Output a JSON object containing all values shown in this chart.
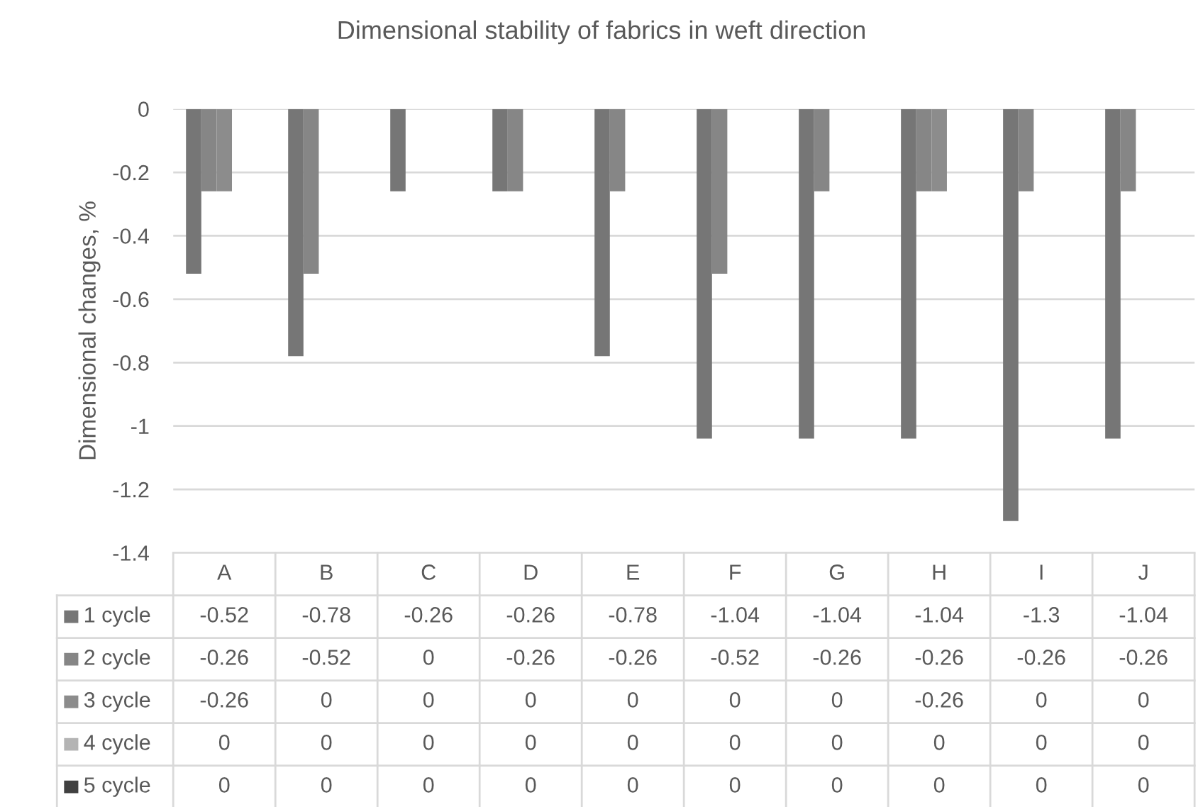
{
  "chart_data": {
    "type": "bar",
    "title": "Dimensional stability of fabrics in weft direction",
    "ylabel": "Dimensional changes, %",
    "categories": [
      "A",
      "B",
      "C",
      "D",
      "E",
      "F",
      "G",
      "H",
      "I",
      "J"
    ],
    "series": [
      {
        "name": "1 cycle",
        "color": "#767676",
        "values": [
          -0.52,
          -0.78,
          -0.26,
          -0.26,
          -0.78,
          -1.04,
          -1.04,
          -1.04,
          -1.3,
          -1.04
        ]
      },
      {
        "name": "2 cycle",
        "color": "#868686",
        "values": [
          -0.26,
          -0.52,
          0,
          -0.26,
          -0.26,
          -0.52,
          -0.26,
          -0.26,
          -0.26,
          -0.26
        ]
      },
      {
        "name": "3 cycle",
        "color": "#8c8c8c",
        "values": [
          -0.26,
          0,
          0,
          0,
          0,
          0,
          0,
          -0.26,
          0,
          0
        ]
      },
      {
        "name": "4 cycle",
        "color": "#b4b4b4",
        "values": [
          0,
          0,
          0,
          0,
          0,
          0,
          0,
          0,
          0,
          0
        ]
      },
      {
        "name": "5 cycle",
        "color": "#404040",
        "values": [
          0,
          0,
          0,
          0,
          0,
          0,
          0,
          0,
          0,
          0
        ]
      }
    ],
    "ylim": [
      -1.4,
      0
    ],
    "yticks": [
      0,
      -0.2,
      -0.4,
      -0.6,
      -0.8,
      -1,
      -1.2,
      -1.4
    ],
    "grid": "y",
    "data_labels": true,
    "legend": "bottom"
  }
}
